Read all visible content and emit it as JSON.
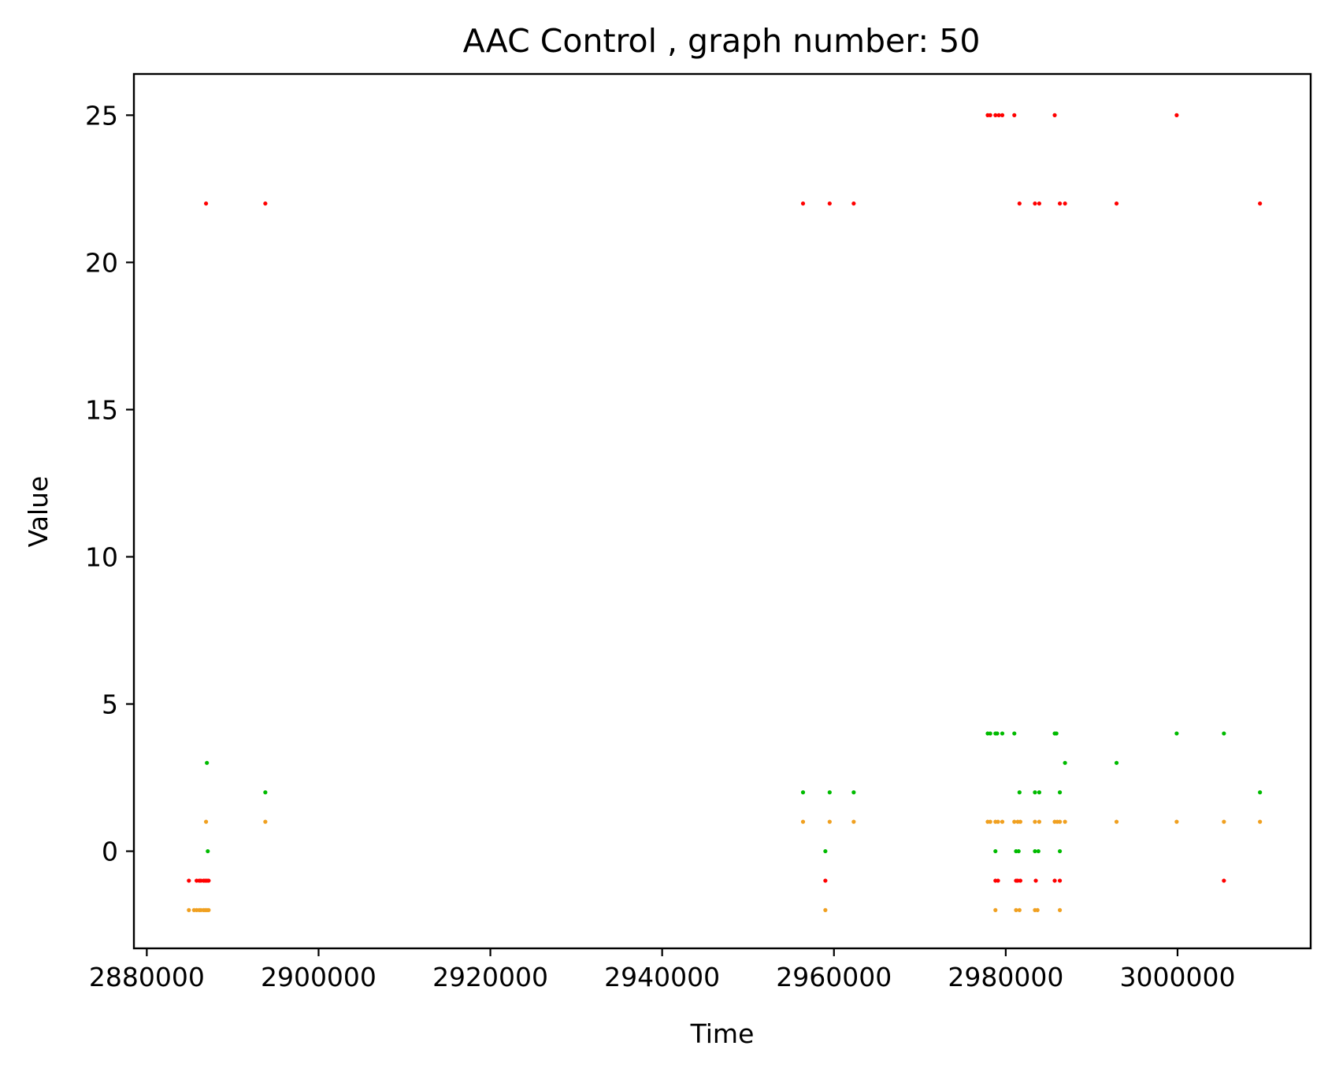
{
  "chart_data": {
    "type": "scatter",
    "title": "AAC Control , graph number: 50",
    "xlabel": "Time",
    "ylabel": "Value",
    "xlim": [
      2878500,
      3015500
    ],
    "ylim": [
      -3.3,
      26.4
    ],
    "xticks": [
      2880000,
      2900000,
      2920000,
      2940000,
      2960000,
      2980000,
      3000000
    ],
    "yticks": [
      0,
      5,
      10,
      15,
      20,
      25
    ],
    "grid": false,
    "legend": "none",
    "series": [
      {
        "color": "#ff0000",
        "points": [
          [
            2886900,
            22
          ],
          [
            2893800,
            22
          ],
          [
            2956400,
            22
          ],
          [
            2959500,
            22
          ],
          [
            2962300,
            22
          ],
          [
            2981600,
            22
          ],
          [
            2983400,
            22
          ],
          [
            2983900,
            22
          ],
          [
            2986300,
            22
          ],
          [
            2986900,
            22
          ],
          [
            2992900,
            22
          ],
          [
            3009600,
            22
          ],
          [
            2977900,
            25
          ],
          [
            2978200,
            25
          ],
          [
            2978800,
            25
          ],
          [
            2979200,
            25
          ],
          [
            2979600,
            25
          ],
          [
            2981000,
            25
          ],
          [
            2985700,
            25
          ],
          [
            2999900,
            25
          ],
          [
            2884900,
            -1
          ],
          [
            2885800,
            -1
          ],
          [
            2886100,
            -1
          ],
          [
            2886300,
            -1
          ],
          [
            2886600,
            -1
          ],
          [
            2886800,
            -1
          ],
          [
            2887000,
            -1
          ],
          [
            2887200,
            -1
          ],
          [
            2959000,
            -1
          ],
          [
            2978800,
            -1
          ],
          [
            2979100,
            -1
          ],
          [
            2981200,
            -1
          ],
          [
            2981400,
            -1
          ],
          [
            2981700,
            -1
          ],
          [
            2983500,
            -1
          ],
          [
            2985700,
            -1
          ],
          [
            2986300,
            -1
          ],
          [
            3005400,
            -1
          ]
        ]
      },
      {
        "color": "#00bb00",
        "points": [
          [
            2887000,
            3
          ],
          [
            2887100,
            0
          ],
          [
            2893800,
            2
          ],
          [
            2956400,
            2
          ],
          [
            2959000,
            0
          ],
          [
            2959500,
            2
          ],
          [
            2962300,
            2
          ],
          [
            2977900,
            4
          ],
          [
            2978200,
            4
          ],
          [
            2978800,
            4
          ],
          [
            2979000,
            4
          ],
          [
            2979600,
            4
          ],
          [
            2981000,
            4
          ],
          [
            2985700,
            4
          ],
          [
            2985900,
            4
          ],
          [
            2999900,
            4
          ],
          [
            3005400,
            4
          ],
          [
            2978800,
            0
          ],
          [
            2981200,
            0
          ],
          [
            2981500,
            0
          ],
          [
            2983400,
            0
          ],
          [
            2983800,
            0
          ],
          [
            2986300,
            0
          ],
          [
            2981600,
            2
          ],
          [
            2983400,
            2
          ],
          [
            2983900,
            2
          ],
          [
            2986300,
            2
          ],
          [
            3009600,
            2
          ],
          [
            2986900,
            3
          ],
          [
            2992900,
            3
          ]
        ]
      },
      {
        "color": "#f0a020",
        "points": [
          [
            2884900,
            -2
          ],
          [
            2885500,
            -2
          ],
          [
            2885800,
            -2
          ],
          [
            2886100,
            -2
          ],
          [
            2886300,
            -2
          ],
          [
            2886600,
            -2
          ],
          [
            2886800,
            -2
          ],
          [
            2887000,
            -2
          ],
          [
            2887200,
            -2
          ],
          [
            2886900,
            1
          ],
          [
            2893800,
            1
          ],
          [
            2956400,
            1
          ],
          [
            2959500,
            1
          ],
          [
            2962300,
            1
          ],
          [
            2959000,
            -2
          ],
          [
            2977900,
            1
          ],
          [
            2978200,
            1
          ],
          [
            2978800,
            1
          ],
          [
            2979100,
            1
          ],
          [
            2979600,
            1
          ],
          [
            2981000,
            1
          ],
          [
            2981400,
            1
          ],
          [
            2981700,
            1
          ],
          [
            2983400,
            1
          ],
          [
            2983900,
            1
          ],
          [
            2985700,
            1
          ],
          [
            2986000,
            1
          ],
          [
            2986300,
            1
          ],
          [
            2986900,
            1
          ],
          [
            2992900,
            1
          ],
          [
            2999900,
            1
          ],
          [
            3005400,
            1
          ],
          [
            3009600,
            1
          ],
          [
            2978800,
            -2
          ],
          [
            2981200,
            -2
          ],
          [
            2981600,
            -2
          ],
          [
            2983400,
            -2
          ],
          [
            2983700,
            -2
          ],
          [
            2986300,
            -2
          ]
        ]
      }
    ]
  }
}
